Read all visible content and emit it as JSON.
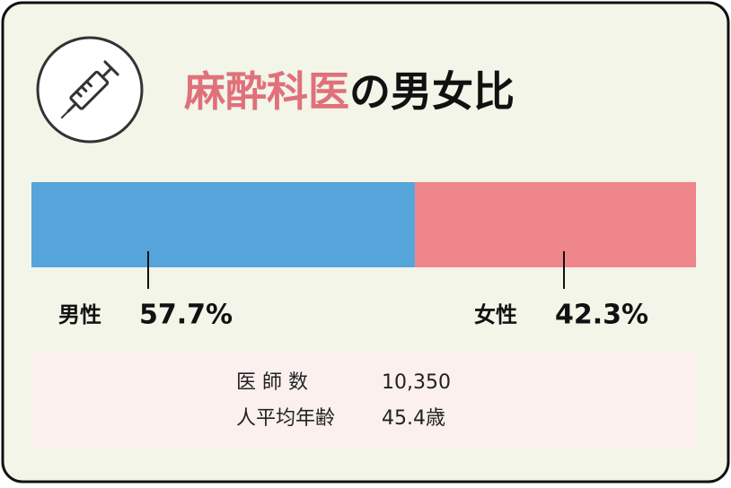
{
  "chart_data": {
    "type": "stacked-bar",
    "title": {
      "highlight": "麻酔科医",
      "rest": "の男女比"
    },
    "xlim": [
      0,
      100
    ],
    "series": [
      {
        "name": "男性",
        "color": "#55a5db",
        "values": [
          57.7
        ],
        "value_labels": [
          "57.7%"
        ]
      },
      {
        "name": "女性",
        "color": "#ef868b",
        "values": [
          42.3
        ],
        "value_labels": [
          "42.3%"
        ]
      }
    ],
    "stats": [
      [
        "医 師 数",
        "10,350"
      ],
      [
        "人平均年齢",
        "45.4歳"
      ]
    ]
  }
}
